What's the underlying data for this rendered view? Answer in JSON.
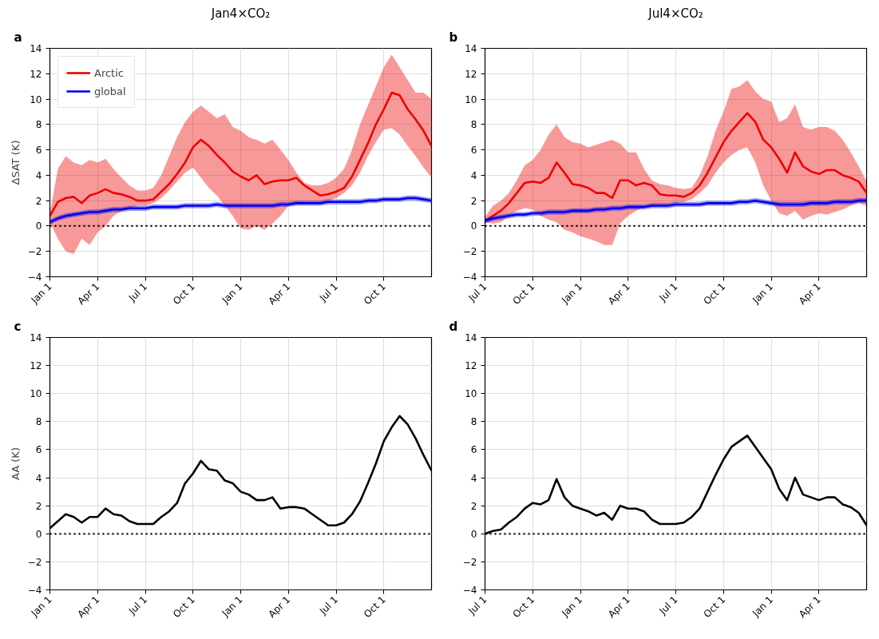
{
  "chart_data": [
    {
      "type": "line",
      "title": "Jan4×CO₂",
      "ylabel": "ΔSAT (K)",
      "annotations": [
        "a"
      ],
      "categories": [
        "Jan 1",
        null,
        null,
        null,
        null,
        null,
        "Apr 1",
        null,
        null,
        null,
        null,
        null,
        "Jul 1",
        null,
        null,
        null,
        null,
        null,
        "Oct 1",
        null,
        null,
        null,
        null,
        null,
        "Jan 1",
        null,
        null,
        null,
        null,
        null,
        "Apr 1",
        null,
        null,
        null,
        null,
        null,
        "Jul 1",
        null,
        null,
        null,
        null,
        null,
        "Oct 1",
        null,
        null,
        null,
        null,
        null,
        null
      ],
      "ylim": [
        -4,
        14
      ],
      "yticks": [
        -4,
        -2,
        0,
        2,
        4,
        6,
        8,
        10,
        12,
        14
      ],
      "grid": true,
      "legend": "top left",
      "line_style": "solid",
      "ref_lines": [
        {
          "axis": "y",
          "value": 0,
          "color": "#000000",
          "line_style": "dotted"
        }
      ],
      "series": [
        {
          "name": "Arctic",
          "color": "#ee0000",
          "values": [
            0.8,
            1.9,
            2.2,
            2.3,
            1.8,
            2.4,
            2.6,
            2.9,
            2.6,
            2.5,
            2.3,
            2.0,
            2.0,
            2.1,
            2.7,
            3.3,
            4.1,
            5.0,
            6.2,
            6.8,
            6.3,
            5.6,
            5.0,
            4.3,
            3.9,
            3.6,
            4.0,
            3.3,
            3.5,
            3.6,
            3.6,
            3.8,
            3.2,
            2.8,
            2.4,
            2.5,
            2.7,
            3.0,
            3.9,
            5.2,
            6.5,
            8.0,
            9.2,
            10.5,
            10.3,
            9.2,
            8.4,
            7.5,
            6.3
          ],
          "upper": [
            1.0,
            4.5,
            5.5,
            5.0,
            4.8,
            5.2,
            5.0,
            5.3,
            4.5,
            3.8,
            3.2,
            2.8,
            2.8,
            3.0,
            4.0,
            5.5,
            7.0,
            8.2,
            9.0,
            9.5,
            9.0,
            8.5,
            8.8,
            7.8,
            7.5,
            7.0,
            6.8,
            6.5,
            6.8,
            6.0,
            5.2,
            4.2,
            3.4,
            3.2,
            3.2,
            3.4,
            3.8,
            4.5,
            6.0,
            8.0,
            9.5,
            11.0,
            12.5,
            13.5,
            12.5,
            11.5,
            10.5,
            10.5,
            10.0
          ],
          "lower": [
            0.3,
            -1.0,
            -2.0,
            -2.2,
            -1.0,
            -1.5,
            -0.5,
            0.0,
            0.8,
            1.2,
            1.4,
            1.6,
            1.6,
            1.8,
            2.2,
            2.8,
            3.5,
            4.2,
            4.6,
            3.8,
            3.0,
            2.4,
            1.6,
            0.8,
            -0.2,
            -0.3,
            0.0,
            -0.3,
            0.2,
            0.8,
            1.6,
            1.8,
            1.9,
            1.9,
            1.9,
            2.0,
            2.2,
            2.6,
            3.2,
            4.2,
            5.5,
            6.6,
            7.6,
            7.7,
            7.2,
            6.3,
            5.5,
            4.6,
            3.8
          ]
        },
        {
          "name": "global",
          "color": "#0000ee",
          "values": [
            0.3,
            0.6,
            0.8,
            0.9,
            1.0,
            1.1,
            1.1,
            1.2,
            1.3,
            1.3,
            1.4,
            1.4,
            1.4,
            1.5,
            1.5,
            1.5,
            1.5,
            1.6,
            1.6,
            1.6,
            1.6,
            1.7,
            1.6,
            1.6,
            1.6,
            1.6,
            1.6,
            1.6,
            1.6,
            1.7,
            1.7,
            1.8,
            1.8,
            1.8,
            1.8,
            1.9,
            1.9,
            1.9,
            1.9,
            1.9,
            2.0,
            2.0,
            2.1,
            2.1,
            2.1,
            2.2,
            2.2,
            2.1,
            2.0
          ],
          "lower": [
            0.1,
            0.4,
            0.6,
            0.7,
            0.8,
            0.9,
            0.9,
            1.0,
            1.1,
            1.1,
            1.2,
            1.2,
            1.2,
            1.3,
            1.3,
            1.3,
            1.3,
            1.4,
            1.4,
            1.4,
            1.4,
            1.5,
            1.4,
            1.4,
            1.4,
            1.4,
            1.4,
            1.4,
            1.4,
            1.5,
            1.5,
            1.6,
            1.6,
            1.6,
            1.6,
            1.7,
            1.7,
            1.7,
            1.7,
            1.7,
            1.8,
            1.8,
            1.9,
            1.9,
            1.9,
            2.0,
            2.0,
            1.9,
            1.8
          ],
          "upper": [
            0.5,
            0.8,
            1.0,
            1.1,
            1.2,
            1.3,
            1.3,
            1.4,
            1.5,
            1.5,
            1.6,
            1.6,
            1.6,
            1.7,
            1.7,
            1.7,
            1.7,
            1.8,
            1.8,
            1.8,
            1.8,
            1.9,
            1.8,
            1.8,
            1.8,
            1.8,
            1.8,
            1.8,
            1.8,
            1.9,
            1.9,
            2.0,
            2.0,
            2.0,
            2.0,
            2.1,
            2.1,
            2.1,
            2.1,
            2.1,
            2.2,
            2.2,
            2.3,
            2.3,
            2.3,
            2.4,
            2.4,
            2.3,
            2.2
          ]
        }
      ]
    },
    {
      "type": "line",
      "title": "Jul4×CO₂",
      "annotations": [
        "b"
      ],
      "categories": [
        "Jul 1",
        null,
        null,
        null,
        null,
        null,
        "Oct 1",
        null,
        null,
        null,
        null,
        null,
        "Jan 1",
        null,
        null,
        null,
        null,
        null,
        "Apr 1",
        null,
        null,
        null,
        null,
        null,
        "Jul 1",
        null,
        null,
        null,
        null,
        null,
        "Oct 1",
        null,
        null,
        null,
        null,
        null,
        "Jan 1",
        null,
        null,
        null,
        null,
        null,
        "Apr 1",
        null,
        null,
        null,
        null,
        null,
        null
      ],
      "ylim": [
        -4,
        14
      ],
      "yticks": [
        -4,
        -2,
        0,
        2,
        4,
        6,
        8,
        10,
        12,
        14
      ],
      "grid": true,
      "line_style": "solid",
      "ref_lines": [
        {
          "axis": "y",
          "value": 0,
          "color": "#000000",
          "line_style": "dotted"
        }
      ],
      "series": [
        {
          "color": "#ee0000",
          "values": [
            0.4,
            0.8,
            1.2,
            1.8,
            2.6,
            3.4,
            3.5,
            3.4,
            3.8,
            5.0,
            4.2,
            3.3,
            3.2,
            3.0,
            2.6,
            2.6,
            2.2,
            3.6,
            3.6,
            3.2,
            3.4,
            3.2,
            2.5,
            2.4,
            2.4,
            2.3,
            2.6,
            3.2,
            4.2,
            5.4,
            6.6,
            7.5,
            8.2,
            8.9,
            8.2,
            6.8,
            6.2,
            5.3,
            4.2,
            5.8,
            4.7,
            4.3,
            4.1,
            4.4,
            4.4,
            4.0,
            3.8,
            3.5,
            2.6
          ],
          "upper": [
            0.7,
            1.6,
            2.0,
            2.6,
            3.6,
            4.8,
            5.2,
            6.0,
            7.2,
            8.0,
            7.0,
            6.6,
            6.5,
            6.2,
            6.4,
            6.6,
            6.8,
            6.5,
            5.8,
            5.8,
            4.5,
            3.6,
            3.3,
            3.2,
            3.0,
            2.9,
            3.0,
            4.0,
            5.5,
            7.5,
            9.0,
            10.8,
            11.0,
            11.5,
            10.6,
            10.0,
            9.8,
            8.2,
            8.5,
            9.6,
            7.8,
            7.6,
            7.8,
            7.8,
            7.5,
            6.8,
            5.8,
            4.7,
            3.5
          ],
          "lower": [
            0.3,
            0.2,
            0.3,
            0.8,
            1.2,
            1.4,
            1.3,
            0.8,
            0.5,
            0.3,
            -0.3,
            -0.5,
            -0.8,
            -1.0,
            -1.2,
            -1.5,
            -1.5,
            0.2,
            0.8,
            1.2,
            1.5,
            1.5,
            1.6,
            1.7,
            1.8,
            1.9,
            2.1,
            2.6,
            3.2,
            4.2,
            5.0,
            5.6,
            6.0,
            6.2,
            5.0,
            3.2,
            2.0,
            1.0,
            0.8,
            1.2,
            0.5,
            0.8,
            1.0,
            0.9,
            1.1,
            1.3,
            1.6,
            1.8,
            1.6
          ]
        },
        {
          "color": "#0000ee",
          "values": [
            0.4,
            0.6,
            0.7,
            0.8,
            0.9,
            0.9,
            1.0,
            1.0,
            1.1,
            1.1,
            1.1,
            1.2,
            1.2,
            1.2,
            1.3,
            1.3,
            1.4,
            1.4,
            1.5,
            1.5,
            1.5,
            1.6,
            1.6,
            1.6,
            1.7,
            1.7,
            1.7,
            1.7,
            1.8,
            1.8,
            1.8,
            1.8,
            1.9,
            1.9,
            2.0,
            1.9,
            1.8,
            1.7,
            1.7,
            1.7,
            1.7,
            1.8,
            1.8,
            1.8,
            1.9,
            1.9,
            1.9,
            2.0,
            2.0
          ],
          "lower": [
            0.2,
            0.4,
            0.5,
            0.6,
            0.7,
            0.7,
            0.8,
            0.8,
            0.9,
            0.9,
            0.9,
            1.0,
            1.0,
            1.0,
            1.1,
            1.1,
            1.2,
            1.2,
            1.3,
            1.3,
            1.3,
            1.4,
            1.4,
            1.4,
            1.5,
            1.5,
            1.5,
            1.5,
            1.6,
            1.6,
            1.6,
            1.6,
            1.7,
            1.7,
            1.8,
            1.7,
            1.6,
            1.5,
            1.5,
            1.5,
            1.5,
            1.6,
            1.6,
            1.6,
            1.7,
            1.7,
            1.7,
            1.8,
            1.8
          ],
          "upper": [
            0.6,
            0.8,
            0.9,
            1.0,
            1.1,
            1.1,
            1.2,
            1.2,
            1.3,
            1.3,
            1.3,
            1.4,
            1.4,
            1.4,
            1.5,
            1.5,
            1.6,
            1.6,
            1.7,
            1.7,
            1.7,
            1.8,
            1.8,
            1.8,
            1.9,
            1.9,
            1.9,
            1.9,
            2.0,
            2.0,
            2.0,
            2.0,
            2.1,
            2.1,
            2.2,
            2.1,
            2.0,
            1.9,
            1.9,
            1.9,
            1.9,
            2.0,
            2.0,
            2.0,
            2.1,
            2.1,
            2.1,
            2.2,
            2.2
          ]
        }
      ]
    },
    {
      "type": "line",
      "ylabel": "AA (K)",
      "annotations": [
        "c"
      ],
      "categories": [
        "Jan 1",
        null,
        null,
        null,
        null,
        null,
        "Apr 1",
        null,
        null,
        null,
        null,
        null,
        "Jul 1",
        null,
        null,
        null,
        null,
        null,
        "Oct 1",
        null,
        null,
        null,
        null,
        null,
        "Jan 1",
        null,
        null,
        null,
        null,
        null,
        "Apr 1",
        null,
        null,
        null,
        null,
        null,
        "Jul 1",
        null,
        null,
        null,
        null,
        null,
        "Oct 1",
        null,
        null,
        null,
        null,
        null,
        null
      ],
      "ylim": [
        -4,
        14
      ],
      "yticks": [
        -4,
        -2,
        0,
        2,
        4,
        6,
        8,
        10,
        12,
        14
      ],
      "grid": true,
      "line_style": "solid",
      "ref_lines": [
        {
          "axis": "y",
          "value": 0,
          "color": "#000000",
          "line_style": "dotted"
        }
      ],
      "series": [
        {
          "color": "#000000",
          "values": [
            0.4,
            0.9,
            1.4,
            1.2,
            0.8,
            1.2,
            1.2,
            1.8,
            1.4,
            1.3,
            0.9,
            0.7,
            0.7,
            0.7,
            1.2,
            1.6,
            2.2,
            3.6,
            4.3,
            5.2,
            4.6,
            4.5,
            3.8,
            3.6,
            3.0,
            2.8,
            2.4,
            2.4,
            2.6,
            1.8,
            1.9,
            1.9,
            1.8,
            1.4,
            1.0,
            0.6,
            0.6,
            0.8,
            1.4,
            2.3,
            3.6,
            5.0,
            6.6,
            7.6,
            8.4,
            7.8,
            6.8,
            5.6,
            4.5
          ]
        }
      ]
    },
    {
      "type": "line",
      "annotations": [
        "d"
      ],
      "categories": [
        "Jul 1",
        null,
        null,
        null,
        null,
        null,
        "Oct 1",
        null,
        null,
        null,
        null,
        null,
        "Jan 1",
        null,
        null,
        null,
        null,
        null,
        "Apr 1",
        null,
        null,
        null,
        null,
        null,
        "Jul 1",
        null,
        null,
        null,
        null,
        null,
        "Oct 1",
        null,
        null,
        null,
        null,
        null,
        "Jan 1",
        null,
        null,
        null,
        null,
        null,
        "Apr 1",
        null,
        null,
        null,
        null,
        null,
        null
      ],
      "ylim": [
        -4,
        14
      ],
      "yticks": [
        -4,
        -2,
        0,
        2,
        4,
        6,
        8,
        10,
        12,
        14
      ],
      "grid": true,
      "line_style": "solid",
      "ref_lines": [
        {
          "axis": "y",
          "value": 0,
          "color": "#000000",
          "line_style": "dotted"
        }
      ],
      "series": [
        {
          "color": "#000000",
          "values": [
            0.0,
            0.2,
            0.3,
            0.8,
            1.2,
            1.8,
            2.2,
            2.1,
            2.4,
            3.9,
            2.6,
            2.0,
            1.8,
            1.6,
            1.3,
            1.5,
            1.0,
            2.0,
            1.8,
            1.8,
            1.6,
            1.0,
            0.7,
            0.7,
            0.7,
            0.8,
            1.2,
            1.8,
            3.0,
            4.2,
            5.3,
            6.2,
            6.6,
            7.0,
            6.2,
            5.4,
            4.6,
            3.2,
            2.4,
            4.0,
            2.8,
            2.6,
            2.4,
            2.6,
            2.6,
            2.1,
            1.9,
            1.5,
            0.6
          ]
        }
      ]
    }
  ]
}
